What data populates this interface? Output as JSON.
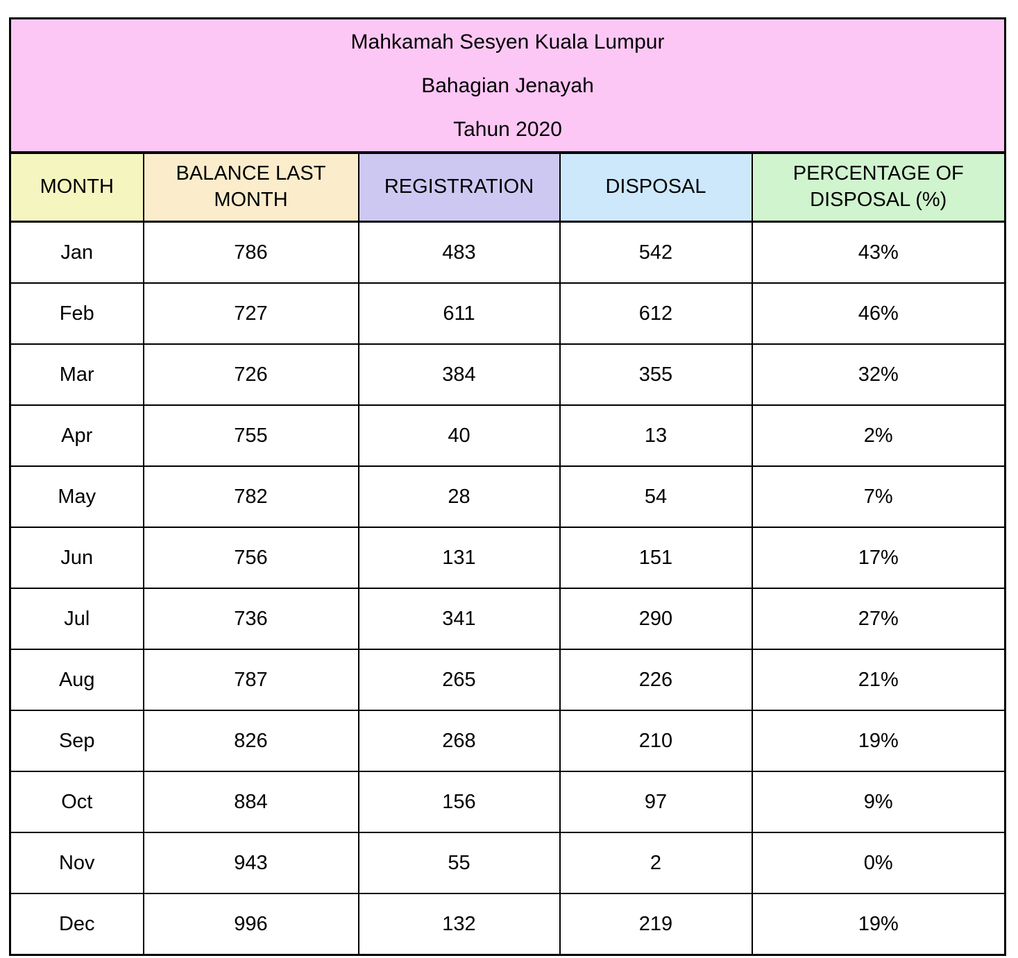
{
  "title": {
    "line1": "Mahkamah Sesyen Kuala Lumpur",
    "line2": "Bahagian Jenayah",
    "line3": "Tahun 2020"
  },
  "columns": [
    "MONTH",
    "BALANCE LAST MONTH",
    "REGISTRATION",
    "DISPOSAL",
    "PERCENTAGE OF DISPOSAL (%)"
  ],
  "rows": [
    [
      "Jan",
      "786",
      "483",
      "542",
      "43%"
    ],
    [
      "Feb",
      "727",
      "611",
      "612",
      "46%"
    ],
    [
      "Mar",
      "726",
      "384",
      "355",
      "32%"
    ],
    [
      "Apr",
      "755",
      "40",
      "13",
      "2%"
    ],
    [
      "May",
      "782",
      "28",
      "54",
      "7%"
    ],
    [
      "Jun",
      "756",
      "131",
      "151",
      "17%"
    ],
    [
      "Jul",
      "736",
      "341",
      "290",
      "27%"
    ],
    [
      "Aug",
      "787",
      "265",
      "226",
      "21%"
    ],
    [
      "Sep",
      "826",
      "268",
      "210",
      "19%"
    ],
    [
      "Oct",
      "884",
      "156",
      "97",
      "9%"
    ],
    [
      "Nov",
      "943",
      "55",
      "2",
      "0%"
    ],
    [
      "Dec",
      "996",
      "132",
      "219",
      "19%"
    ]
  ],
  "colors": {
    "title_bg": "#fdc7f5",
    "month_bg": "#f5f5c0",
    "balance_bg": "#fbeccb",
    "registration_bg": "#cdc8f2",
    "disposal_bg": "#cde8fb",
    "percentage_bg": "#d0f4ce",
    "border": "#000000",
    "text": "#000000"
  },
  "chart_data": {
    "type": "table",
    "title": "Mahkamah Sesyen Kuala Lumpur — Bahagian Jenayah — Tahun 2020",
    "categories": [
      "Jan",
      "Feb",
      "Mar",
      "Apr",
      "May",
      "Jun",
      "Jul",
      "Aug",
      "Sep",
      "Oct",
      "Nov",
      "Dec"
    ],
    "series": [
      {
        "name": "BALANCE LAST MONTH",
        "values": [
          786,
          727,
          726,
          755,
          782,
          756,
          736,
          787,
          826,
          884,
          943,
          996
        ]
      },
      {
        "name": "REGISTRATION",
        "values": [
          483,
          611,
          384,
          40,
          28,
          131,
          341,
          265,
          268,
          156,
          55,
          132
        ]
      },
      {
        "name": "DISPOSAL",
        "values": [
          542,
          612,
          355,
          13,
          54,
          151,
          290,
          226,
          210,
          97,
          2,
          219
        ]
      },
      {
        "name": "PERCENTAGE OF DISPOSAL (%)",
        "values": [
          43,
          46,
          32,
          2,
          7,
          17,
          27,
          21,
          19,
          9,
          0,
          19
        ]
      }
    ]
  }
}
